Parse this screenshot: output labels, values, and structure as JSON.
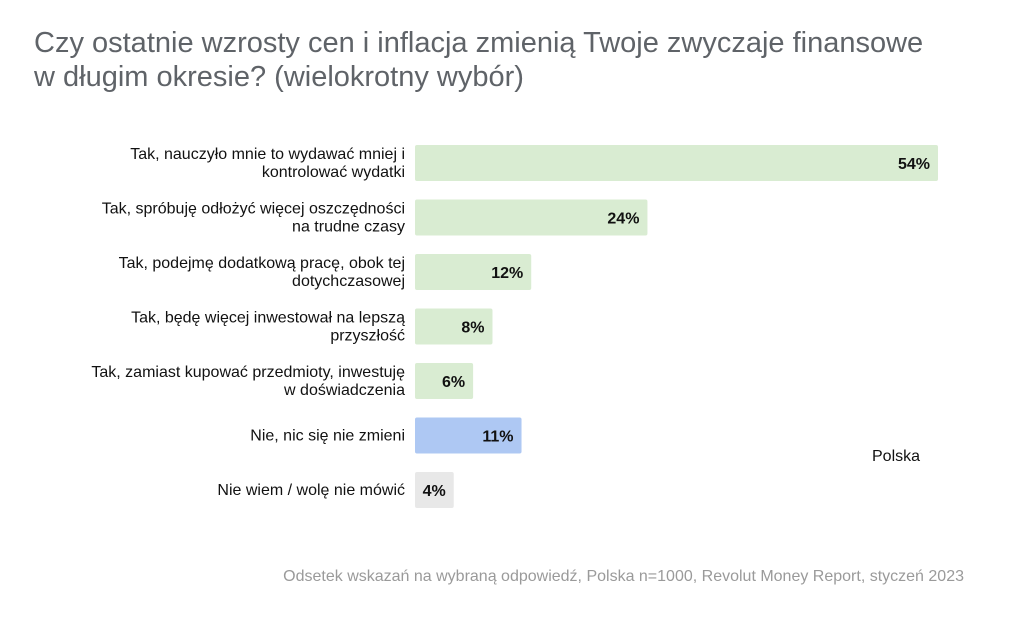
{
  "title": "Czy ostatnie wzrosty cen i inflacja zmienią Twoje zwyczaje finansowe w długim okresie? (wielokrotny wybór)",
  "legend_label": "Polska",
  "footnote": "Odsetek wskazań na wybraną odpowiedź, Polska n=1000, Revolut Money Report, styczeń 2023",
  "colors": {
    "green": "#d9ecd2",
    "blue": "#aec8f3",
    "gray": "#e8e8e8",
    "title": "#5f6368",
    "footnote": "#9a9a9a"
  },
  "chart_data": {
    "type": "bar",
    "orientation": "horizontal",
    "title": "Czy ostatnie wzrosty cen i inflacja zmienią Twoje zwyczaje finansowe w długim okresie? (wielokrotny wybór)",
    "series_name": "Polska",
    "unit": "%",
    "categories": [
      [
        "Tak, nauczyło mnie to wydawać mniej i",
        "kontrolować wydatki"
      ],
      [
        "Tak, spróbuję odłożyć więcej oszczędności",
        "na trudne czasy"
      ],
      [
        "Tak, podejmę dodatkową pracę, obok tej",
        "dotychczasowej"
      ],
      [
        "Tak, będę więcej inwestował na lepszą",
        "przyszłość"
      ],
      [
        "Tak, zamiast kupować przedmioty, inwestuję",
        "w doświadczenia"
      ],
      [
        "Nie, nic się nie zmieni"
      ],
      [
        "Nie wiem / wolę nie mówić"
      ]
    ],
    "values": [
      54,
      24,
      12,
      8,
      6,
      11,
      4
    ],
    "value_labels": [
      "54%",
      "24%",
      "12%",
      "8%",
      "6%",
      "11%",
      "4%"
    ],
    "bar_colors": [
      "green",
      "green",
      "green",
      "green",
      "green",
      "blue",
      "gray"
    ],
    "xlim": [
      0,
      54
    ],
    "grid": false,
    "legend_position": "right"
  }
}
